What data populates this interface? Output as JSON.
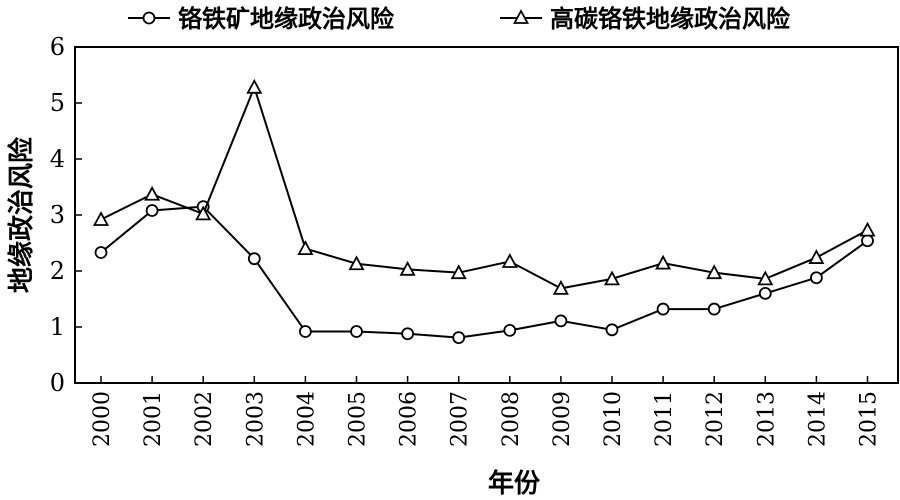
{
  "chart_data": {
    "type": "line",
    "title": "",
    "xlabel": "年份",
    "ylabel": "地缘政治风险",
    "categories": [
      "2000",
      "2001",
      "2002",
      "2003",
      "2004",
      "2005",
      "2006",
      "2007",
      "2008",
      "2009",
      "2010",
      "2011",
      "2012",
      "2013",
      "2014",
      "2015"
    ],
    "ylim": [
      0,
      6
    ],
    "yticks": [
      0,
      1,
      2,
      3,
      4,
      5,
      6
    ],
    "grid": false,
    "legend_position": "top",
    "series": [
      {
        "name": "铬铁矿地缘政治风险",
        "marker": "circle",
        "color": "#000000",
        "values": [
          2.33,
          3.08,
          3.15,
          2.22,
          0.92,
          0.92,
          0.88,
          0.81,
          0.94,
          1.11,
          0.95,
          1.32,
          1.32,
          1.6,
          1.88,
          2.54
        ]
      },
      {
        "name": "高碳铬铁地缘政治风险",
        "marker": "triangle",
        "color": "#000000",
        "values": [
          2.92,
          3.37,
          3.02,
          5.28,
          2.4,
          2.13,
          2.03,
          1.97,
          2.17,
          1.69,
          1.86,
          2.14,
          1.97,
          1.86,
          2.24,
          2.73
        ]
      }
    ]
  }
}
